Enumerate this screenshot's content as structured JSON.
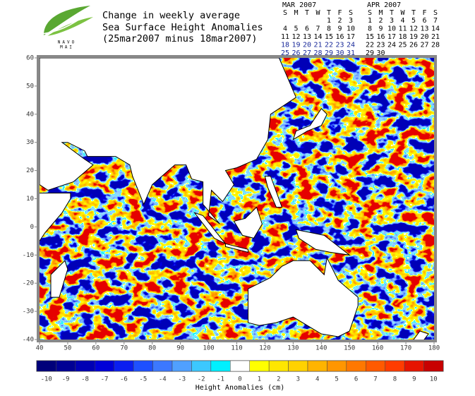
{
  "header": {
    "logo_lines": [
      "NAVO",
      "MAI"
    ],
    "title_lines": [
      "Change in weekly average",
      "Sea Surface Height Anomalies",
      "(25mar2007 minus 18mar2007)"
    ]
  },
  "calendars": [
    {
      "month": "MAR 2007",
      "weekdays": [
        "S",
        "M",
        "T",
        "W",
        "T",
        "F",
        "S"
      ],
      "weeks": [
        [
          null,
          null,
          null,
          null,
          1,
          2,
          3
        ],
        [
          4,
          5,
          6,
          7,
          8,
          9,
          10
        ],
        [
          11,
          12,
          13,
          14,
          15,
          16,
          17
        ],
        [
          18,
          19,
          20,
          21,
          22,
          23,
          24
        ],
        [
          25,
          26,
          27,
          28,
          29,
          30,
          31
        ]
      ]
    },
    {
      "month": "APR 2007",
      "weekdays": [
        "S",
        "M",
        "T",
        "W",
        "T",
        "F",
        "S"
      ],
      "weeks": [
        [
          1,
          2,
          3,
          4,
          5,
          6,
          7
        ],
        [
          8,
          9,
          10,
          11,
          12,
          13,
          14
        ],
        [
          15,
          16,
          17,
          18,
          19,
          20,
          21
        ],
        [
          22,
          23,
          24,
          25,
          26,
          27,
          28
        ],
        [
          29,
          30
        ]
      ]
    }
  ],
  "map": {
    "xlim": [
      40,
      180
    ],
    "ylim": [
      -40,
      60
    ],
    "xticks": [
      40,
      50,
      60,
      70,
      80,
      90,
      100,
      110,
      120,
      130,
      140,
      150,
      160,
      170,
      180
    ],
    "yticks": [
      -40,
      -30,
      -20,
      -10,
      0,
      10,
      20,
      30,
      40,
      50,
      60
    ]
  },
  "colorbar": {
    "title": "Height Anomalies (cm)",
    "values": [
      -10,
      -9,
      -8,
      -7,
      -6,
      -5,
      -4,
      -3,
      -2,
      -1,
      0,
      1,
      2,
      3,
      4,
      5,
      6,
      7,
      8,
      9,
      10
    ],
    "colors": [
      "#00007a",
      "#000094",
      "#0000b4",
      "#0000d8",
      "#0a1ef0",
      "#1e50ff",
      "#3c78ff",
      "#50a0ff",
      "#3cc8ff",
      "#00f0ff",
      "#ffffff",
      "#ffff00",
      "#ffe600",
      "#ffd200",
      "#ffb400",
      "#ff9600",
      "#ff7800",
      "#ff5a00",
      "#ff3c00",
      "#e61400",
      "#c80000"
    ]
  }
}
